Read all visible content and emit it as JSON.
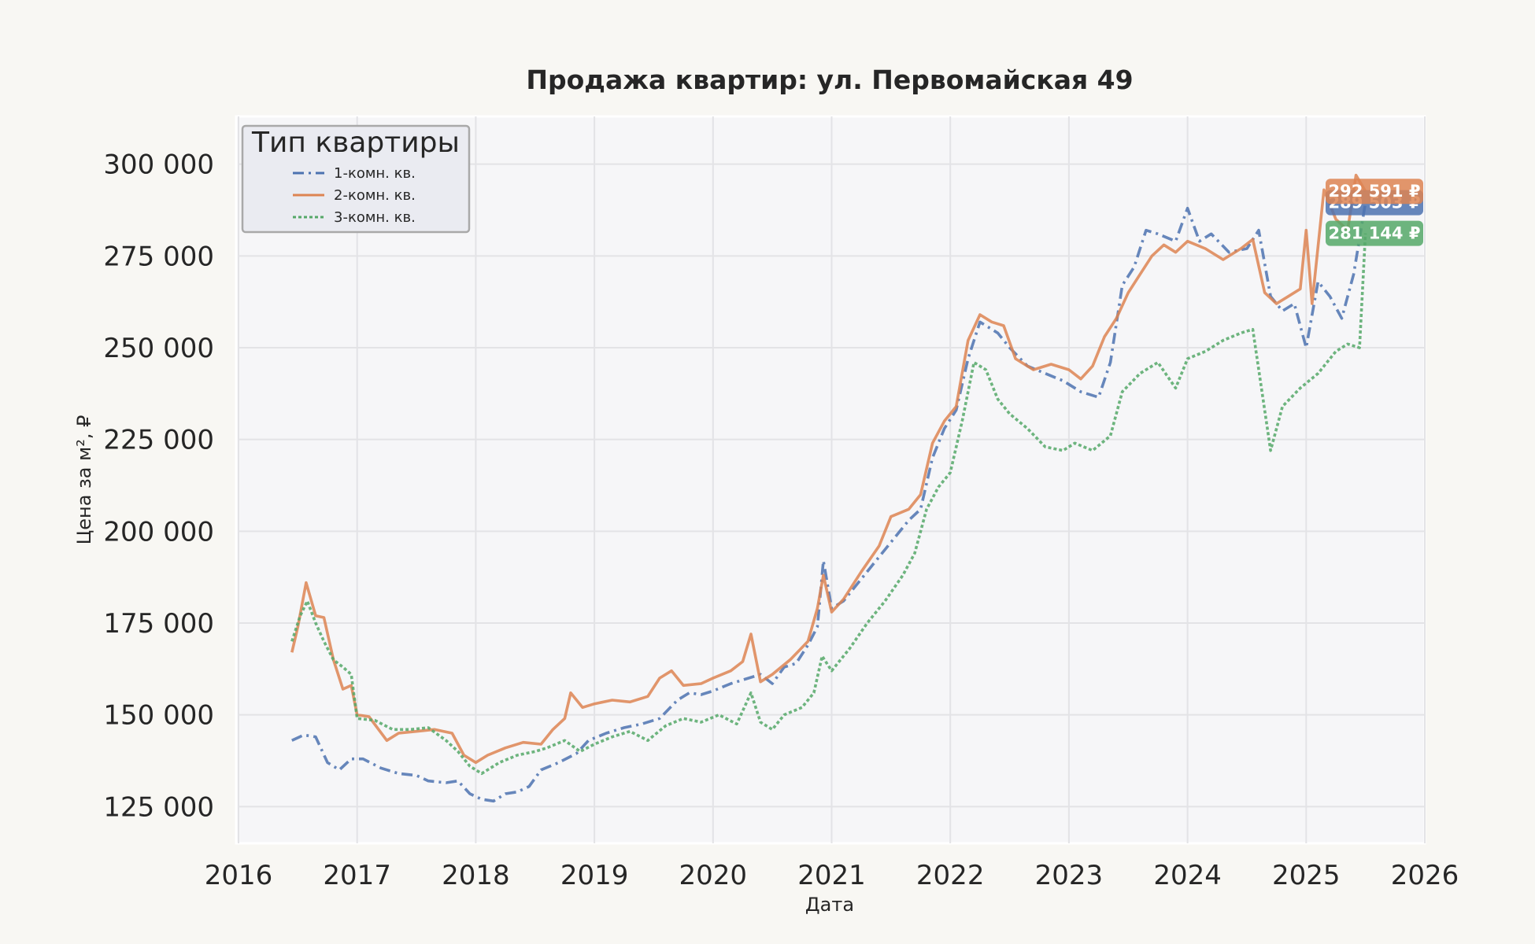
{
  "chart_data": {
    "type": "line",
    "title": "Продажа квартир: ул. Первомайская 49",
    "xlabel": "Дата",
    "ylabel": "Цена за м², ₽",
    "xlim": [
      2016,
      2026
    ],
    "ylim": [
      115000,
      313000
    ],
    "x_ticks": [
      "2016",
      "2017",
      "2018",
      "2019",
      "2020",
      "2021",
      "2022",
      "2023",
      "2024",
      "2025",
      "2026"
    ],
    "y_ticks": [
      "125 000",
      "150 000",
      "175 000",
      "200 000",
      "225 000",
      "250 000",
      "275 000",
      "300 000"
    ],
    "grid": true,
    "legend": {
      "title": "Тип квартиры",
      "position": "top-left"
    },
    "series": [
      {
        "name": "1-комн. кв.",
        "color": "#4c72b0",
        "dash": "dashdot",
        "end_label": "289 503 ₽",
        "points": [
          [
            2016.45,
            143000
          ],
          [
            2016.55,
            144500
          ],
          [
            2016.65,
            144000
          ],
          [
            2016.75,
            137000
          ],
          [
            2016.85,
            135000
          ],
          [
            2016.95,
            138000
          ],
          [
            2017.05,
            138000
          ],
          [
            2017.2,
            135500
          ],
          [
            2017.35,
            134000
          ],
          [
            2017.5,
            133500
          ],
          [
            2017.6,
            132000
          ],
          [
            2017.75,
            131500
          ],
          [
            2017.85,
            132000
          ],
          [
            2017.95,
            128500
          ],
          [
            2018.05,
            127000
          ],
          [
            2018.15,
            126500
          ],
          [
            2018.25,
            128500
          ],
          [
            2018.35,
            129000
          ],
          [
            2018.45,
            130500
          ],
          [
            2018.55,
            135000
          ],
          [
            2018.7,
            137000
          ],
          [
            2018.85,
            139500
          ],
          [
            2018.95,
            143000
          ],
          [
            2019.1,
            145000
          ],
          [
            2019.25,
            146500
          ],
          [
            2019.4,
            147500
          ],
          [
            2019.55,
            149000
          ],
          [
            2019.7,
            154000
          ],
          [
            2019.8,
            156000
          ],
          [
            2019.9,
            155500
          ],
          [
            2020.0,
            156500
          ],
          [
            2020.15,
            158500
          ],
          [
            2020.3,
            160000
          ],
          [
            2020.4,
            161000
          ],
          [
            2020.5,
            158500
          ],
          [
            2020.6,
            163000
          ],
          [
            2020.7,
            164000
          ],
          [
            2020.8,
            169000
          ],
          [
            2020.88,
            174000
          ],
          [
            2020.93,
            192000
          ],
          [
            2021.0,
            179000
          ],
          [
            2021.1,
            181000
          ],
          [
            2021.2,
            185000
          ],
          [
            2021.35,
            191000
          ],
          [
            2021.5,
            197000
          ],
          [
            2021.65,
            203000
          ],
          [
            2021.75,
            206000
          ],
          [
            2021.85,
            220000
          ],
          [
            2021.95,
            228000
          ],
          [
            2022.05,
            233000
          ],
          [
            2022.15,
            247000
          ],
          [
            2022.25,
            257000
          ],
          [
            2022.4,
            254000
          ],
          [
            2022.5,
            250000
          ],
          [
            2022.65,
            245000
          ],
          [
            2022.8,
            243000
          ],
          [
            2022.95,
            241000
          ],
          [
            2023.1,
            238000
          ],
          [
            2023.25,
            236500
          ],
          [
            2023.35,
            246000
          ],
          [
            2023.45,
            267000
          ],
          [
            2023.55,
            272000
          ],
          [
            2023.65,
            282000
          ],
          [
            2023.75,
            281000
          ],
          [
            2023.9,
            279000
          ],
          [
            2024.0,
            288000
          ],
          [
            2024.1,
            279000
          ],
          [
            2024.2,
            281000
          ],
          [
            2024.35,
            276000
          ],
          [
            2024.5,
            277000
          ],
          [
            2024.6,
            282000
          ],
          [
            2024.7,
            264000
          ],
          [
            2024.8,
            260000
          ],
          [
            2024.9,
            262000
          ],
          [
            2025.0,
            250000
          ],
          [
            2025.1,
            268000
          ],
          [
            2025.2,
            264000
          ],
          [
            2025.3,
            258000
          ],
          [
            2025.4,
            270000
          ],
          [
            2025.5,
            289503
          ]
        ]
      },
      {
        "name": "2-комн. кв.",
        "color": "#dd8452",
        "dash": "solid",
        "end_label": "292 591 ₽",
        "points": [
          [
            2016.45,
            167000
          ],
          [
            2016.5,
            174000
          ],
          [
            2016.57,
            186000
          ],
          [
            2016.65,
            177000
          ],
          [
            2016.72,
            176500
          ],
          [
            2016.8,
            165000
          ],
          [
            2016.88,
            157000
          ],
          [
            2016.95,
            158000
          ],
          [
            2017.0,
            150000
          ],
          [
            2017.1,
            149500
          ],
          [
            2017.25,
            143000
          ],
          [
            2017.35,
            145000
          ],
          [
            2017.5,
            145500
          ],
          [
            2017.65,
            146000
          ],
          [
            2017.8,
            145000
          ],
          [
            2017.9,
            139000
          ],
          [
            2018.0,
            137000
          ],
          [
            2018.1,
            139000
          ],
          [
            2018.25,
            141000
          ],
          [
            2018.4,
            142500
          ],
          [
            2018.55,
            142000
          ],
          [
            2018.65,
            146000
          ],
          [
            2018.75,
            149000
          ],
          [
            2018.8,
            156000
          ],
          [
            2018.9,
            152000
          ],
          [
            2019.0,
            153000
          ],
          [
            2019.15,
            154000
          ],
          [
            2019.3,
            153500
          ],
          [
            2019.45,
            155000
          ],
          [
            2019.55,
            160000
          ],
          [
            2019.65,
            162000
          ],
          [
            2019.75,
            158000
          ],
          [
            2019.9,
            158500
          ],
          [
            2020.0,
            160000
          ],
          [
            2020.15,
            162000
          ],
          [
            2020.25,
            164500
          ],
          [
            2020.32,
            172000
          ],
          [
            2020.4,
            159000
          ],
          [
            2020.5,
            161000
          ],
          [
            2020.65,
            165000
          ],
          [
            2020.8,
            170000
          ],
          [
            2020.88,
            179000
          ],
          [
            2020.93,
            188000
          ],
          [
            2021.0,
            178000
          ],
          [
            2021.1,
            181500
          ],
          [
            2021.25,
            189000
          ],
          [
            2021.4,
            196000
          ],
          [
            2021.5,
            204000
          ],
          [
            2021.65,
            206000
          ],
          [
            2021.75,
            210000
          ],
          [
            2021.85,
            224000
          ],
          [
            2021.95,
            230000
          ],
          [
            2022.05,
            234000
          ],
          [
            2022.15,
            252000
          ],
          [
            2022.25,
            259000
          ],
          [
            2022.35,
            257000
          ],
          [
            2022.45,
            256000
          ],
          [
            2022.55,
            247000
          ],
          [
            2022.7,
            244000
          ],
          [
            2022.85,
            245500
          ],
          [
            2023.0,
            244000
          ],
          [
            2023.1,
            241500
          ],
          [
            2023.2,
            245000
          ],
          [
            2023.3,
            253000
          ],
          [
            2023.4,
            258000
          ],
          [
            2023.5,
            265000
          ],
          [
            2023.6,
            270000
          ],
          [
            2023.7,
            275000
          ],
          [
            2023.8,
            278000
          ],
          [
            2023.9,
            276000
          ],
          [
            2024.0,
            279000
          ],
          [
            2024.15,
            277000
          ],
          [
            2024.3,
            274000
          ],
          [
            2024.45,
            277000
          ],
          [
            2024.55,
            279500
          ],
          [
            2024.65,
            265000
          ],
          [
            2024.75,
            262000
          ],
          [
            2024.85,
            264000
          ],
          [
            2024.95,
            266000
          ],
          [
            2025.0,
            282000
          ],
          [
            2025.05,
            262000
          ],
          [
            2025.15,
            293000
          ],
          [
            2025.25,
            285000
          ],
          [
            2025.35,
            282000
          ],
          [
            2025.42,
            297000
          ],
          [
            2025.5,
            292591
          ]
        ]
      },
      {
        "name": "3-комн. кв.",
        "color": "#55a868",
        "dash": "dotted",
        "end_label": "281 144 ₽",
        "points": [
          [
            2016.45,
            170000
          ],
          [
            2016.52,
            177000
          ],
          [
            2016.58,
            181000
          ],
          [
            2016.65,
            175000
          ],
          [
            2016.72,
            170000
          ],
          [
            2016.8,
            165000
          ],
          [
            2016.88,
            163000
          ],
          [
            2016.95,
            161000
          ],
          [
            2017.0,
            149000
          ],
          [
            2017.15,
            148500
          ],
          [
            2017.3,
            146000
          ],
          [
            2017.45,
            146000
          ],
          [
            2017.6,
            146500
          ],
          [
            2017.75,
            143000
          ],
          [
            2017.85,
            140000
          ],
          [
            2017.95,
            136000
          ],
          [
            2018.05,
            134000
          ],
          [
            2018.2,
            137000
          ],
          [
            2018.35,
            139000
          ],
          [
            2018.5,
            140000
          ],
          [
            2018.6,
            141000
          ],
          [
            2018.75,
            143000
          ],
          [
            2018.88,
            140000
          ],
          [
            2019.0,
            142000
          ],
          [
            2019.15,
            144000
          ],
          [
            2019.3,
            145500
          ],
          [
            2019.45,
            143000
          ],
          [
            2019.6,
            147000
          ],
          [
            2019.75,
            149000
          ],
          [
            2019.9,
            148000
          ],
          [
            2020.05,
            150000
          ],
          [
            2020.2,
            147500
          ],
          [
            2020.32,
            156000
          ],
          [
            2020.4,
            148000
          ],
          [
            2020.5,
            146000
          ],
          [
            2020.6,
            150000
          ],
          [
            2020.75,
            152000
          ],
          [
            2020.85,
            156000
          ],
          [
            2020.92,
            166000
          ],
          [
            2021.0,
            162000
          ],
          [
            2021.15,
            168000
          ],
          [
            2021.3,
            175000
          ],
          [
            2021.45,
            181000
          ],
          [
            2021.6,
            188000
          ],
          [
            2021.7,
            194000
          ],
          [
            2021.8,
            206000
          ],
          [
            2021.9,
            212000
          ],
          [
            2022.0,
            216000
          ],
          [
            2022.1,
            230000
          ],
          [
            2022.2,
            246000
          ],
          [
            2022.3,
            244000
          ],
          [
            2022.4,
            236000
          ],
          [
            2022.5,
            232000
          ],
          [
            2022.65,
            228000
          ],
          [
            2022.8,
            223000
          ],
          [
            2022.95,
            222000
          ],
          [
            2023.05,
            224000
          ],
          [
            2023.2,
            222000
          ],
          [
            2023.35,
            226000
          ],
          [
            2023.45,
            238000
          ],
          [
            2023.6,
            243000
          ],
          [
            2023.75,
            246000
          ],
          [
            2023.9,
            239000
          ],
          [
            2024.0,
            247000
          ],
          [
            2024.15,
            249000
          ],
          [
            2024.3,
            252000
          ],
          [
            2024.45,
            254000
          ],
          [
            2024.55,
            255000
          ],
          [
            2024.65,
            233000
          ],
          [
            2024.7,
            222000
          ],
          [
            2024.8,
            234000
          ],
          [
            2024.95,
            239000
          ],
          [
            2025.1,
            243000
          ],
          [
            2025.25,
            249000
          ],
          [
            2025.35,
            251000
          ],
          [
            2025.45,
            250000
          ],
          [
            2025.5,
            281144
          ]
        ]
      }
    ]
  }
}
